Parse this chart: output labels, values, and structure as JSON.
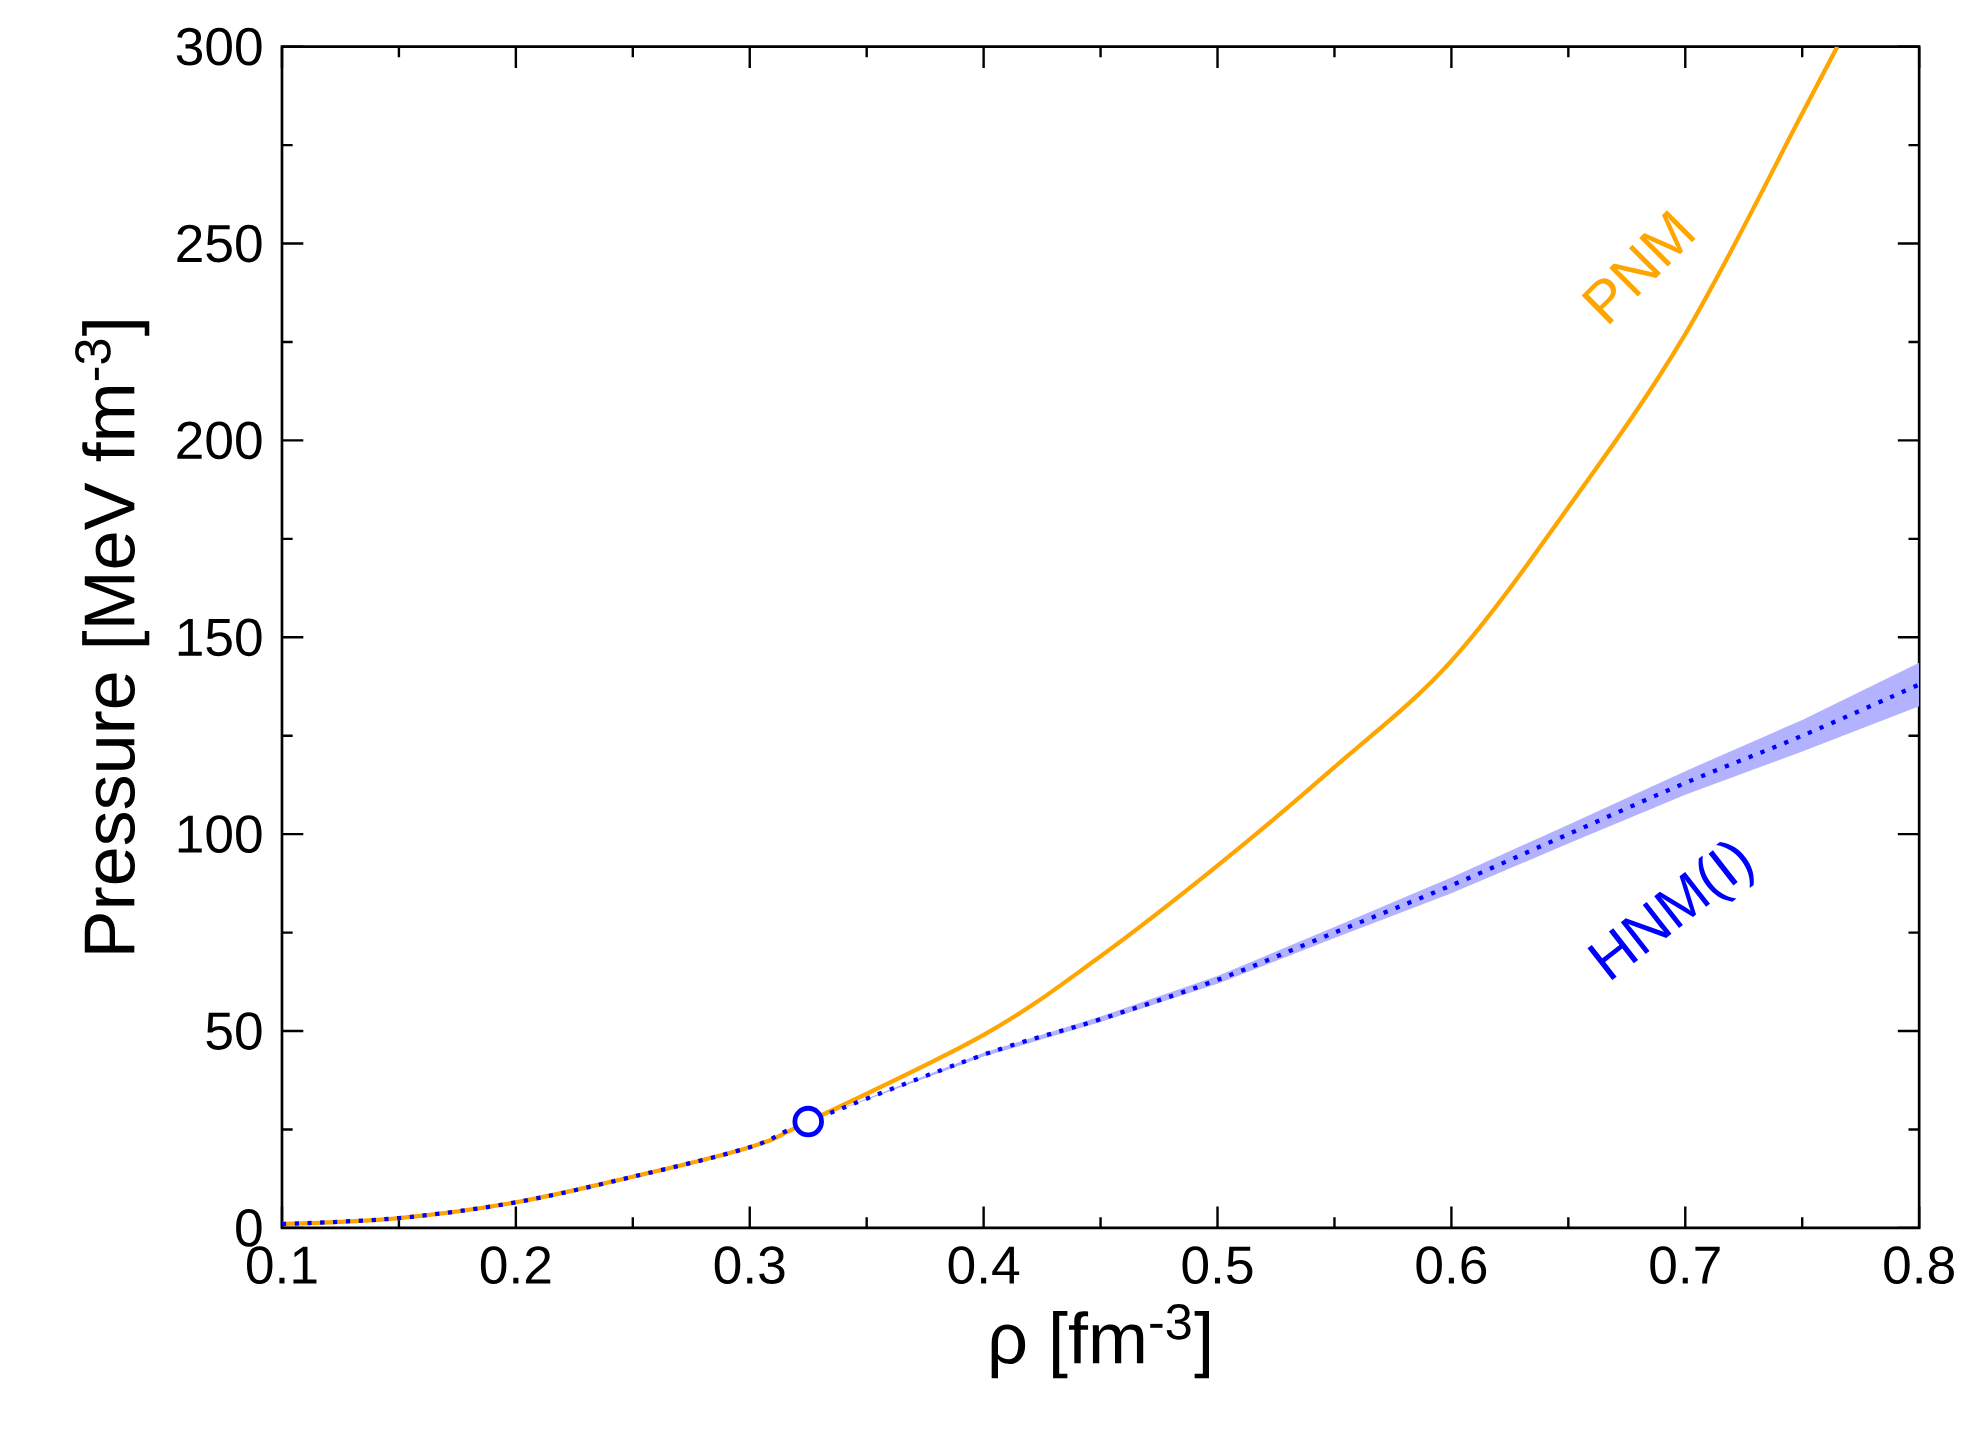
{
  "chart_data": {
    "type": "line",
    "xlabel": "ρ [fm$^{-3}$]",
    "ylabel": "Pressure [MeV fm$^{-3}$]",
    "xlim": [
      0.1,
      0.8
    ],
    "ylim": [
      0,
      300
    ],
    "xticks": [
      0.1,
      0.2,
      0.3,
      0.4,
      0.5,
      0.6,
      0.7,
      0.8
    ],
    "yticks": [
      0,
      50,
      100,
      150,
      200,
      250,
      300
    ],
    "series": [
      {
        "name": "PNM",
        "color": "#ffa500",
        "line_style": "solid",
        "marker": "none",
        "x": [
          0.1,
          0.15,
          0.2,
          0.25,
          0.3,
          0.325,
          0.4,
          0.45,
          0.5,
          0.55,
          0.6,
          0.65,
          0.7,
          0.75,
          0.765
        ],
        "values": [
          1,
          2.5,
          6.5,
          13,
          20.5,
          27,
          49,
          69,
          92,
          117,
          144,
          183,
          227,
          283,
          300
        ]
      },
      {
        "name": "HNM(I)",
        "color": "#0000ff",
        "line_style": "dotted",
        "marker": "none",
        "x": [
          0.1,
          0.15,
          0.2,
          0.25,
          0.3,
          0.325,
          0.4,
          0.45,
          0.5,
          0.55,
          0.6,
          0.65,
          0.7,
          0.75,
          0.8
        ],
        "values": [
          1,
          2.5,
          6.5,
          13,
          20.5,
          27,
          44,
          53,
          63,
          75,
          87,
          100,
          113,
          125,
          138
        ],
        "lower": [
          1,
          2.5,
          6.5,
          13,
          20.5,
          27,
          43.5,
          52.3,
          62,
          73.6,
          85,
          97.6,
          110,
          121,
          132.5
        ],
        "upper": [
          1,
          2.5,
          6.5,
          13,
          20.5,
          27,
          44.5,
          53.7,
          64,
          76.4,
          89,
          102.4,
          116,
          129,
          143.5
        ]
      },
      {
        "type": "scatter",
        "color": "#0000ff",
        "marker": "circle",
        "x": [
          0.325
        ],
        "values": [
          27
        ]
      }
    ]
  }
}
